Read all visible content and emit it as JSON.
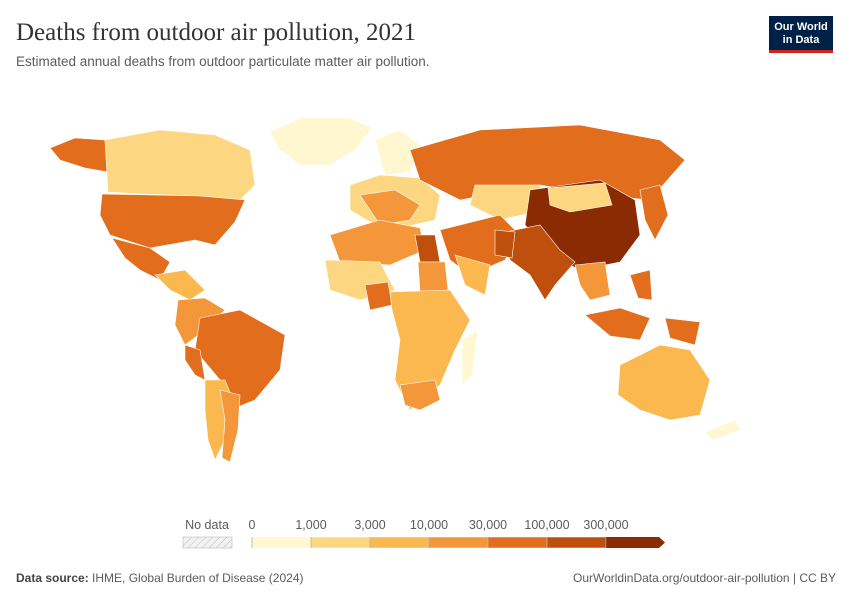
{
  "header": {
    "title": "Deaths from outdoor air pollution, 2021",
    "subtitle": "Estimated annual deaths from outdoor particulate matter air pollution.",
    "logo": [
      "Our World",
      "in Data"
    ]
  },
  "legend": {
    "no_data": "No data",
    "ticks": [
      0,
      {
        "value": 1000,
        "label": "1,000"
      },
      {
        "value": 3000,
        "label": "3,000"
      },
      {
        "value": 10000,
        "label": "10,000"
      },
      {
        "value": 30000,
        "label": "30,000"
      },
      {
        "value": 100000,
        "label": "100,000"
      },
      {
        "value": 300000,
        "label": "300,000"
      }
    ],
    "colors": [
      "#fff7cf",
      "#fdd682",
      "#fbb84f",
      "#f4963a",
      "#e26d1c",
      "#bf4f0c",
      "#8a2b03"
    ]
  },
  "footer": {
    "source_label": "Data source:",
    "source": "IHME, Global Burden of Disease (2024)",
    "url": "OurWorldinData.org/outdoor-air-pollution | CC BY"
  }
}
